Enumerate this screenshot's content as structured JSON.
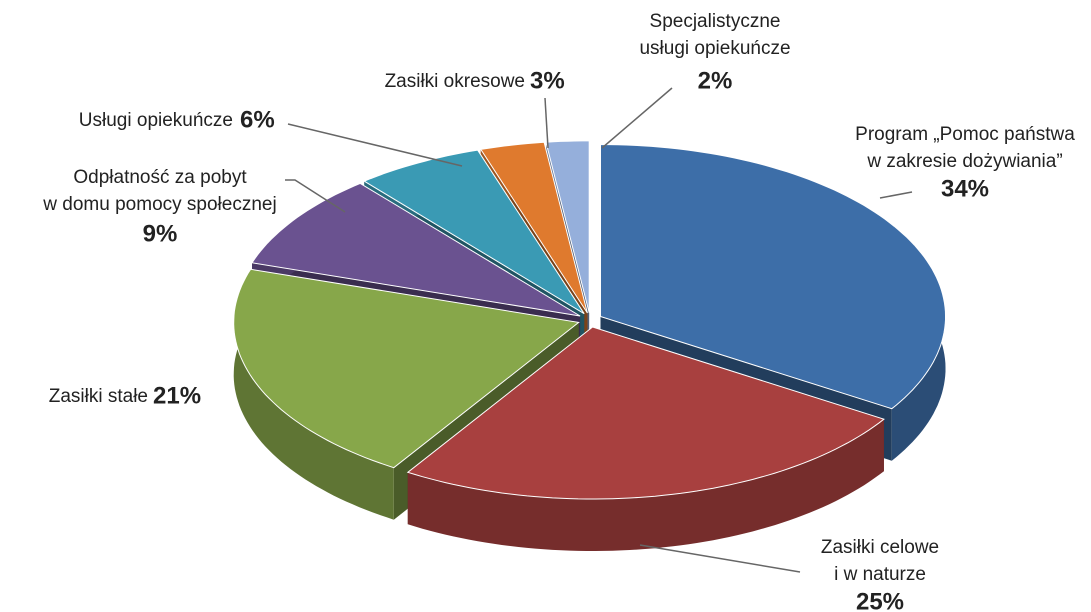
{
  "chart_data": {
    "type": "pie3d",
    "categories": [
      "Program „Pomoc państwa\nw zakresie dożywiania”",
      "Zasiłki celowe\ni w naturze",
      "Zasiłki stałe",
      "Odpłatność za pobyt\nw domu pomocy społecznej",
      "Usługi opiekuńcze",
      "Zasiłki okresowe",
      "Specjalistyczne\nusługi opiekuńcze"
    ],
    "values": [
      34,
      25,
      21,
      9,
      6,
      3,
      2
    ],
    "value_labels": [
      "34%",
      "25%",
      "21%",
      "9%",
      "6%",
      "3%",
      "2%"
    ],
    "colors": [
      "#3d6ea8",
      "#a8403f",
      "#87a74a",
      "#6a5290",
      "#3a9ab4",
      "#df7a2e",
      "#95afdb"
    ]
  }
}
